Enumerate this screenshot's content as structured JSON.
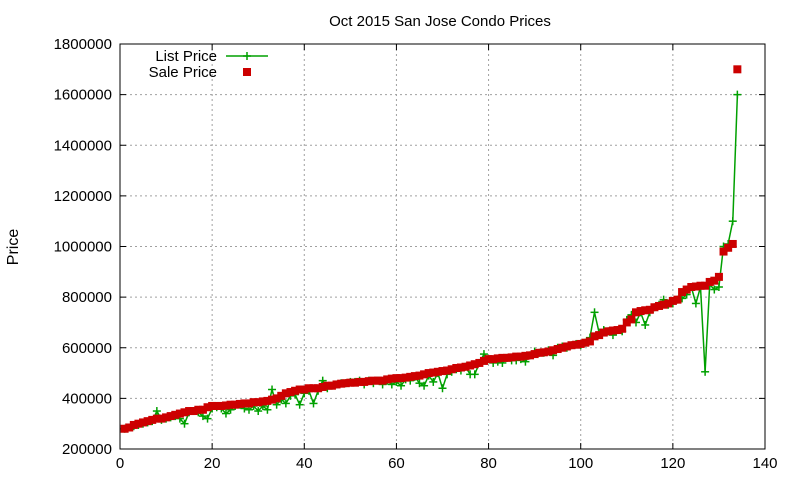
{
  "chart_data": {
    "type": "line",
    "title": "Oct 2015 San Jose Condo Prices",
    "xlabel": "",
    "ylabel": "Price",
    "xlim": [
      0,
      140
    ],
    "ylim": [
      200000,
      1800000
    ],
    "x_ticks": [
      0,
      20,
      40,
      60,
      80,
      100,
      120,
      140
    ],
    "y_ticks": [
      200000,
      400000,
      600000,
      800000,
      1000000,
      1200000,
      1400000,
      1600000,
      1800000
    ],
    "grid": true,
    "legend_position": "top-left",
    "series": [
      {
        "name": "List Price",
        "style": "line-plus",
        "color": "#00a000",
        "x": [
          1,
          2,
          3,
          4,
          5,
          6,
          7,
          8,
          9,
          10,
          11,
          12,
          13,
          14,
          15,
          16,
          17,
          18,
          19,
          20,
          21,
          22,
          23,
          24,
          25,
          26,
          27,
          28,
          29,
          30,
          31,
          32,
          33,
          34,
          35,
          36,
          37,
          38,
          39,
          40,
          41,
          42,
          43,
          44,
          45,
          46,
          47,
          48,
          49,
          50,
          51,
          52,
          53,
          54,
          55,
          56,
          57,
          58,
          59,
          60,
          61,
          62,
          63,
          64,
          65,
          66,
          67,
          68,
          69,
          70,
          71,
          72,
          73,
          74,
          75,
          76,
          77,
          78,
          79,
          80,
          81,
          82,
          83,
          84,
          85,
          86,
          87,
          88,
          89,
          90,
          91,
          92,
          93,
          94,
          95,
          96,
          97,
          98,
          99,
          100,
          101,
          102,
          103,
          104,
          105,
          106,
          107,
          108,
          109,
          110,
          111,
          112,
          113,
          114,
          115,
          116,
          117,
          118,
          119,
          120,
          121,
          122,
          123,
          124,
          125,
          126,
          127,
          128,
          129,
          130,
          131,
          132,
          133,
          134
        ],
        "y": [
          280000,
          285000,
          290000,
          295000,
          300000,
          305000,
          310000,
          350000,
          315000,
          320000,
          325000,
          330000,
          320000,
          300000,
          345000,
          350000,
          345000,
          330000,
          320000,
          360000,
          365000,
          360000,
          340000,
          355000,
          370000,
          375000,
          360000,
          355000,
          370000,
          350000,
          370000,
          355000,
          435000,
          375000,
          395000,
          380000,
          410000,
          415000,
          375000,
          420000,
          430000,
          380000,
          430000,
          470000,
          440000,
          450000,
          455000,
          460000,
          460000,
          465000,
          465000,
          470000,
          455000,
          470000,
          460000,
          470000,
          455000,
          470000,
          455000,
          465000,
          450000,
          475000,
          470000,
          485000,
          460000,
          450000,
          490000,
          465000,
          500000,
          440000,
          495000,
          505000,
          515000,
          510000,
          525000,
          495000,
          495000,
          540000,
          575000,
          555000,
          540000,
          545000,
          540000,
          560000,
          550000,
          550000,
          555000,
          545000,
          570000,
          585000,
          580000,
          580000,
          590000,
          570000,
          600000,
          605000,
          600000,
          610000,
          615000,
          610000,
          620000,
          640000,
          740000,
          660000,
          670000,
          665000,
          650000,
          670000,
          665000,
          710000,
          730000,
          700000,
          740000,
          690000,
          740000,
          760000,
          770000,
          790000,
          770000,
          775000,
          790000,
          795000,
          810000,
          840000,
          775000,
          840000,
          505000,
          850000,
          830000,
          840000,
          1000000,
          1010000,
          1100000,
          1600000
        ]
      },
      {
        "name": "Sale Price",
        "style": "squares",
        "color": "#cc0000",
        "x": [
          1,
          2,
          3,
          4,
          5,
          6,
          7,
          8,
          9,
          10,
          11,
          12,
          13,
          14,
          15,
          16,
          17,
          18,
          19,
          20,
          21,
          22,
          23,
          24,
          25,
          26,
          27,
          28,
          29,
          30,
          31,
          32,
          33,
          34,
          35,
          36,
          37,
          38,
          39,
          40,
          41,
          42,
          43,
          44,
          45,
          46,
          47,
          48,
          49,
          50,
          51,
          52,
          53,
          54,
          55,
          56,
          57,
          58,
          59,
          60,
          61,
          62,
          63,
          64,
          65,
          66,
          67,
          68,
          69,
          70,
          71,
          72,
          73,
          74,
          75,
          76,
          77,
          78,
          79,
          80,
          81,
          82,
          83,
          84,
          85,
          86,
          87,
          88,
          89,
          90,
          91,
          92,
          93,
          94,
          95,
          96,
          97,
          98,
          99,
          100,
          101,
          102,
          103,
          104,
          105,
          106,
          107,
          108,
          109,
          110,
          111,
          112,
          113,
          114,
          115,
          116,
          117,
          118,
          119,
          120,
          121,
          122,
          123,
          124,
          125,
          126,
          127,
          128,
          129,
          130,
          131,
          132,
          133,
          134
        ],
        "y": [
          280000,
          285000,
          295000,
          300000,
          305000,
          310000,
          315000,
          320000,
          320000,
          325000,
          330000,
          335000,
          340000,
          345000,
          350000,
          350000,
          355000,
          355000,
          365000,
          370000,
          370000,
          370000,
          372000,
          375000,
          375000,
          378000,
          380000,
          380000,
          385000,
          385000,
          388000,
          390000,
          395000,
          400000,
          410000,
          420000,
          425000,
          430000,
          435000,
          435000,
          440000,
          440000,
          440000,
          445000,
          450000,
          450000,
          455000,
          458000,
          460000,
          462000,
          462000,
          465000,
          465000,
          468000,
          470000,
          470000,
          470000,
          475000,
          478000,
          480000,
          480000,
          482000,
          485000,
          488000,
          490000,
          495000,
          500000,
          502000,
          505000,
          508000,
          510000,
          515000,
          520000,
          522000,
          525000,
          530000,
          535000,
          540000,
          548000,
          555000,
          555000,
          558000,
          560000,
          560000,
          562000,
          565000,
          565000,
          568000,
          570000,
          575000,
          580000,
          582000,
          585000,
          590000,
          595000,
          600000,
          605000,
          610000,
          612000,
          615000,
          620000,
          625000,
          645000,
          650000,
          660000,
          665000,
          668000,
          670000,
          675000,
          700000,
          712000,
          740000,
          745000,
          748000,
          750000,
          760000,
          765000,
          770000,
          775000,
          785000,
          790000,
          820000,
          830000,
          840000,
          842000,
          845000,
          845000,
          860000,
          865000,
          880000,
          980000,
          995000,
          1010000,
          1700000
        ]
      }
    ]
  }
}
